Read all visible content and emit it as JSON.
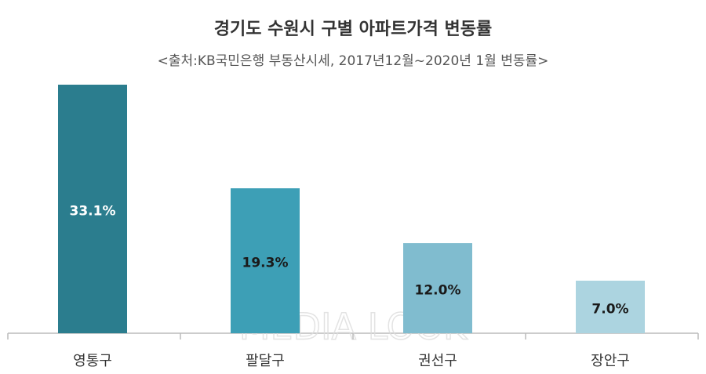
{
  "chart_data": {
    "type": "bar",
    "title": "경기도 수원시 구별 아파트가격 변동률",
    "subtitle": "<출처:KB국민은행 부동산시세, 2017년12월~2020년 1월 변동률>",
    "categories": [
      "영통구",
      "팔달구",
      "권선구",
      "장안구"
    ],
    "values": [
      33.1,
      19.3,
      12.0,
      7.0
    ],
    "value_labels": [
      "33.1%",
      "19.3%",
      "12.0%",
      "7.0%"
    ],
    "colors": [
      "#2b7d8e",
      "#3d9fb6",
      "#80bccf",
      "#acd4e0"
    ],
    "value_label_colors": [
      "#ffffff",
      "#1a1a1a",
      "#1a1a1a",
      "#1a1a1a"
    ],
    "watermark": "MEDIA LOOK"
  }
}
